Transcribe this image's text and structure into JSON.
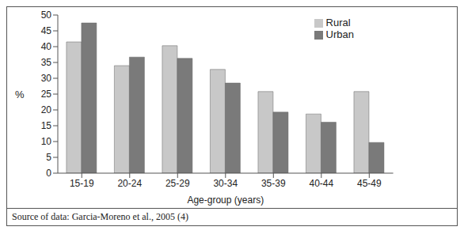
{
  "chart_data": {
    "type": "bar",
    "x_label": "Age-group (years)",
    "y_label": "%",
    "source": "Source of data: Garcia-Moreno et al., 2005 (4)",
    "categories": [
      "15-19",
      "20-24",
      "25-29",
      "30-34",
      "35-39",
      "40-44",
      "45-49"
    ],
    "series": [
      {
        "name": "Rural",
        "color": "#c8c8c8",
        "values": [
          41.5,
          34,
          40.3,
          32.8,
          25.8,
          18.7,
          25.8
        ]
      },
      {
        "name": "Urban",
        "color": "#7a7a7a",
        "values": [
          47.5,
          36.7,
          36.3,
          28.5,
          19.3,
          16.1,
          9.7
        ]
      }
    ],
    "ylim": [
      0,
      50
    ],
    "yticks": [
      0,
      5,
      10,
      15,
      20,
      25,
      30,
      35,
      40,
      45,
      50
    ],
    "grid": false,
    "legend": "upper right"
  }
}
